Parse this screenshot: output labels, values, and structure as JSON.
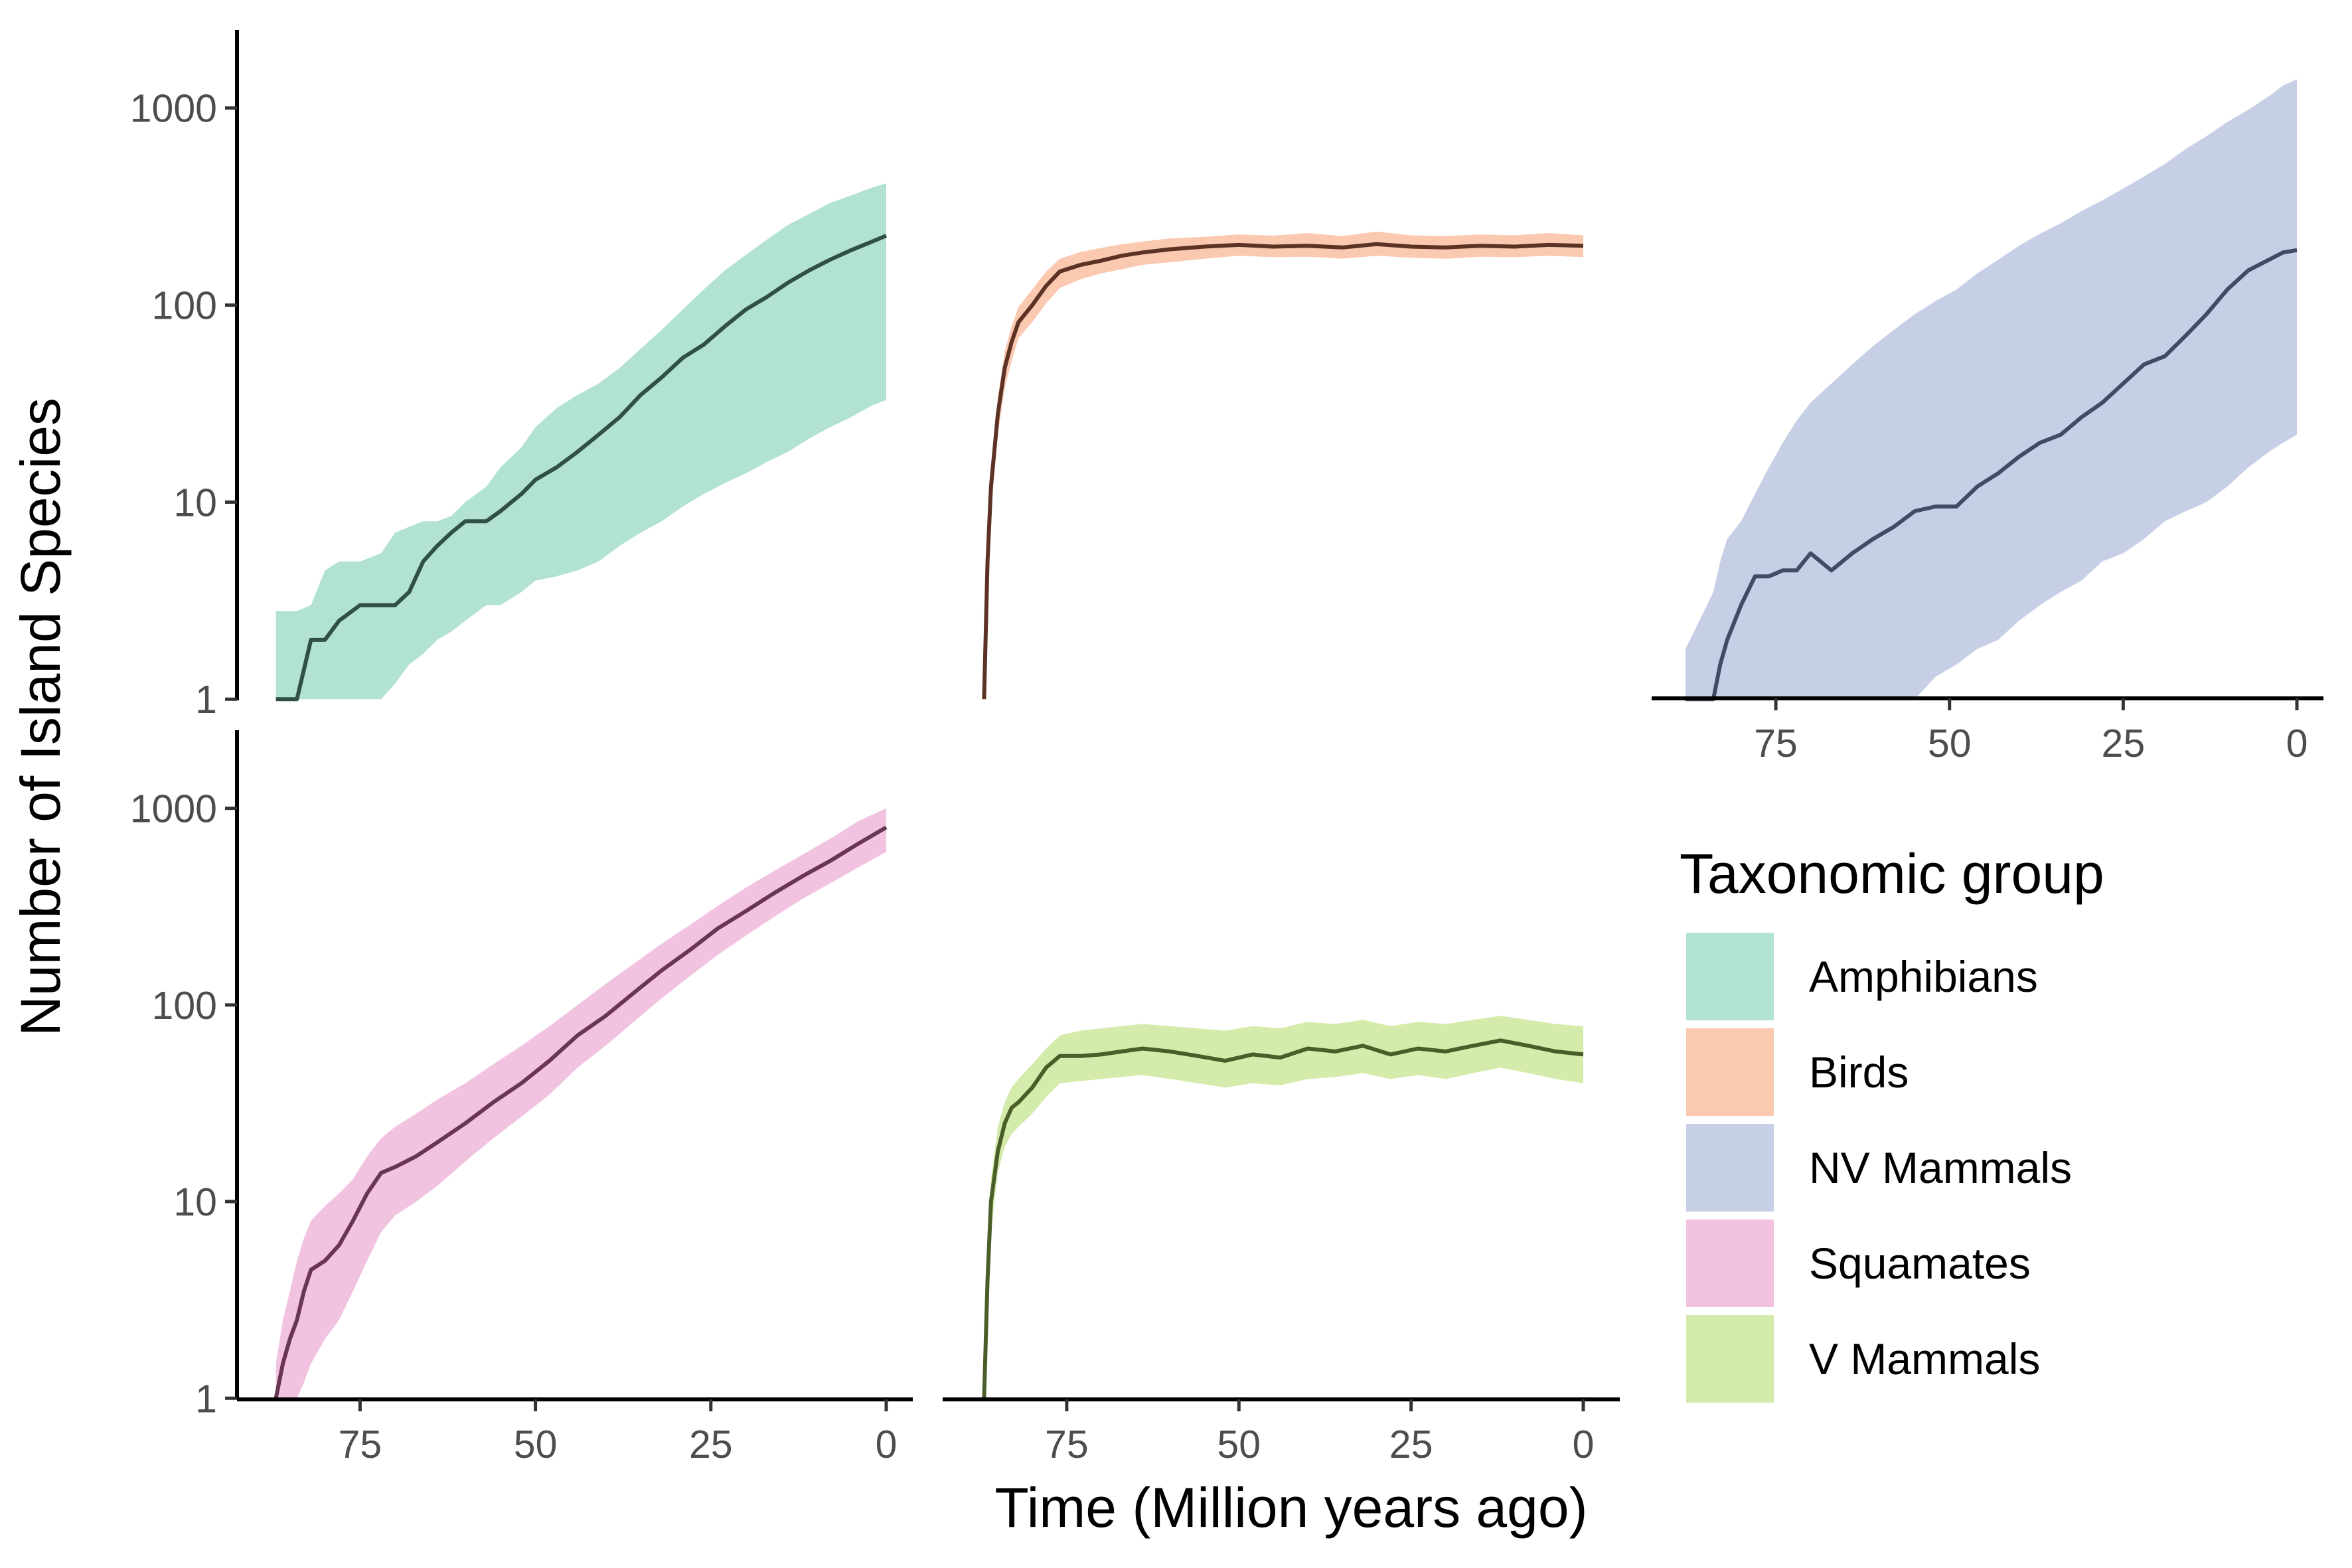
{
  "figure": {
    "ylabel": "Number of Island Species",
    "xlabel": "Time (Million years ago)",
    "legend_title": "Taxonomic group",
    "legend_placement": "right"
  },
  "legend": [
    {
      "label": "Amphibians",
      "color": "#b2e2d4"
    },
    {
      "label": "Birds",
      "color": "#fbc8b0"
    },
    {
      "label": "NV Mammals",
      "color": "#c7cfe6"
    },
    {
      "label": "Squamates",
      "color": "#f1c3e1"
    },
    {
      "label": "V Mammals",
      "color": "#d5ebab"
    }
  ],
  "chart_data": {
    "type": "area",
    "layout": "faceted 2x3 (panels: Amphibians, Birds, NV Mammals / Squamates, V Mammals)",
    "xlim": [
      90,
      0
    ],
    "x_reversed": true,
    "xticks": [
      75,
      50,
      25,
      0
    ],
    "y_scale": "log10",
    "ylim": [
      0.8,
      1900
    ],
    "yticks": [
      1,
      10,
      100,
      1000
    ],
    "ytick_labels": [
      "1",
      "10",
      "100",
      "1000"
    ],
    "panels": [
      {
        "name": "Amphibians",
        "fill": "#b2e2d4",
        "line": "#2f4f47",
        "x": [
          87,
          84,
          82,
          80,
          78,
          75,
          72,
          70,
          68,
          66,
          64,
          62,
          60,
          57,
          55,
          52,
          50,
          47,
          44,
          41,
          38,
          35,
          32,
          29,
          26,
          23,
          20,
          17,
          14,
          11,
          8,
          5,
          2,
          0
        ],
        "mean": [
          1,
          1,
          2,
          2,
          2.5,
          3,
          3,
          3,
          3.5,
          5,
          6,
          7,
          8,
          8,
          9,
          11,
          13,
          15,
          18,
          22,
          27,
          35,
          43,
          54,
          63,
          78,
          95,
          110,
          130,
          150,
          170,
          190,
          210,
          225
        ],
        "lower": [
          1,
          1,
          1,
          1,
          1,
          1,
          1,
          1.2,
          1.5,
          1.7,
          2,
          2.2,
          2.5,
          3,
          3,
          3.5,
          4,
          4.2,
          4.5,
          5,
          6,
          7,
          8,
          9.5,
          11,
          12.5,
          14,
          16,
          18,
          21,
          24,
          27,
          31,
          33
        ],
        "upper": [
          2.8,
          2.8,
          3,
          4.5,
          5,
          5,
          5.5,
          7,
          7.5,
          8,
          8,
          8.5,
          10,
          12,
          15,
          19,
          24,
          30,
          35,
          40,
          48,
          60,
          75,
          95,
          120,
          150,
          180,
          215,
          255,
          290,
          330,
          360,
          395,
          415
        ]
      },
      {
        "name": "Birds",
        "fill": "#fbc8b0",
        "line": "#5c3224",
        "x": [
          87,
          86.5,
          86,
          85,
          84,
          83,
          82,
          80,
          78,
          76,
          73,
          70,
          67,
          64,
          60,
          55,
          50,
          45,
          40,
          35,
          30,
          25,
          20,
          15,
          10,
          5,
          0
        ],
        "mean": [
          1,
          5,
          12,
          28,
          48,
          65,
          82,
          100,
          125,
          148,
          160,
          168,
          178,
          185,
          192,
          198,
          202,
          198,
          200,
          196,
          204,
          198,
          196,
          200,
          198,
          202,
          200
        ],
        "lower": [
          1,
          4,
          9,
          22,
          38,
          52,
          68,
          82,
          102,
          122,
          135,
          145,
          152,
          160,
          165,
          172,
          178,
          175,
          176,
          172,
          178,
          174,
          172,
          176,
          175,
          178,
          175
        ],
        "upper": [
          1,
          7,
          15,
          34,
          58,
          78,
          98,
          120,
          148,
          172,
          186,
          195,
          204,
          210,
          218,
          222,
          228,
          225,
          232,
          224,
          236,
          226,
          224,
          228,
          226,
          232,
          226
        ]
      },
      {
        "name": "NV Mammals",
        "fill": "#c7cfe6",
        "line": "#414a66",
        "x": [
          88,
          86,
          84,
          83,
          82,
          80,
          78,
          76,
          74,
          72,
          70,
          67,
          64,
          61,
          58,
          55,
          52,
          49,
          46,
          43,
          40,
          37,
          34,
          31,
          28,
          25,
          22,
          19,
          16,
          13,
          10,
          7,
          4,
          2,
          0
        ],
        "mean": [
          1,
          1,
          1,
          1.5,
          2,
          3,
          4.2,
          4.2,
          4.5,
          4.5,
          5.5,
          4.5,
          5.5,
          6.5,
          7.5,
          9,
          9.5,
          9.5,
          12,
          14,
          17,
          20,
          22,
          27,
          32,
          40,
          50,
          55,
          70,
          90,
          120,
          150,
          170,
          185,
          190
        ],
        "lower": [
          1,
          1,
          1,
          1,
          1,
          1,
          1,
          1,
          1,
          1,
          1,
          1,
          1,
          1,
          1,
          1,
          1.3,
          1.5,
          1.8,
          2,
          2.5,
          3,
          3.5,
          4,
          5,
          5.5,
          6.5,
          8,
          9,
          10,
          12,
          15,
          18,
          20,
          22
        ],
        "upper": [
          1.8,
          2.5,
          3.5,
          5,
          6.5,
          8,
          11,
          15,
          20,
          26,
          32,
          40,
          50,
          62,
          75,
          90,
          105,
          120,
          145,
          170,
          200,
          230,
          260,
          300,
          340,
          390,
          450,
          520,
          620,
          720,
          850,
          980,
          1150,
          1300,
          1400
        ]
      },
      {
        "name": "Squamates",
        "fill": "#f1c3e1",
        "line": "#6a3552",
        "x": [
          87,
          86,
          85,
          84,
          83,
          82,
          80,
          78,
          76,
          74,
          72,
          70,
          67,
          64,
          60,
          56,
          52,
          48,
          44,
          40,
          36,
          32,
          28,
          24,
          20,
          16,
          12,
          8,
          4,
          0
        ],
        "mean": [
          1,
          1.5,
          2,
          2.5,
          3.5,
          4.5,
          5,
          6,
          8,
          11,
          14,
          15,
          17,
          20,
          25,
          32,
          40,
          52,
          70,
          88,
          115,
          150,
          190,
          245,
          300,
          370,
          450,
          540,
          660,
          800
        ],
        "lower": [
          1,
          1,
          1,
          1,
          1.2,
          1.5,
          2,
          2.5,
          3.5,
          5,
          7,
          8.5,
          10,
          12,
          16,
          21,
          27,
          35,
          48,
          62,
          82,
          108,
          140,
          180,
          225,
          280,
          345,
          415,
          500,
          600
        ],
        "upper": [
          1.5,
          2.5,
          3.5,
          5,
          6.5,
          8,
          9.5,
          11,
          13,
          17,
          21,
          24,
          28,
          33,
          40,
          50,
          62,
          78,
          100,
          128,
          162,
          205,
          255,
          320,
          395,
          480,
          580,
          700,
          860,
          1000
        ]
      },
      {
        "name": "V Mammals",
        "fill": "#d5ebab",
        "line": "#4a5e2a",
        "x": [
          87,
          86.5,
          86,
          85,
          84,
          83,
          82,
          80,
          78,
          76,
          73,
          70,
          67,
          64,
          60,
          56,
          52,
          48,
          44,
          40,
          36,
          32,
          28,
          24,
          20,
          16,
          12,
          8,
          4,
          0
        ],
        "mean": [
          1,
          4,
          10,
          18,
          25,
          30,
          32,
          38,
          48,
          55,
          55,
          56,
          58,
          60,
          58,
          55,
          52,
          56,
          54,
          60,
          58,
          62,
          56,
          60,
          58,
          62,
          66,
          62,
          58,
          56
        ],
        "lower": [
          1,
          3,
          7,
          14,
          19,
          22,
          24,
          28,
          34,
          40,
          41,
          42,
          43,
          44,
          42,
          40,
          38,
          40,
          39,
          42,
          43,
          45,
          42,
          44,
          42,
          45,
          48,
          45,
          42,
          40
        ],
        "upper": [
          1,
          5,
          13,
          24,
          32,
          38,
          42,
          50,
          60,
          70,
          74,
          76,
          78,
          80,
          78,
          76,
          74,
          78,
          76,
          82,
          80,
          84,
          78,
          82,
          80,
          84,
          88,
          84,
          80,
          78
        ]
      }
    ]
  }
}
